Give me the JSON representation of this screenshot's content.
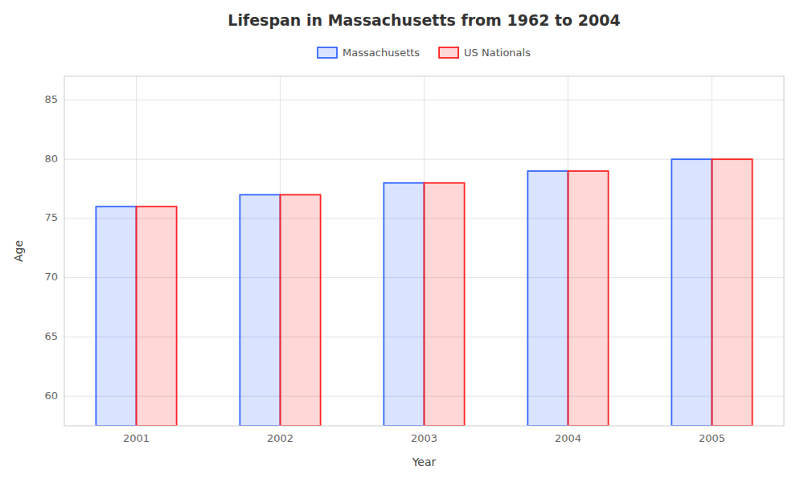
{
  "chart_data": {
    "type": "bar",
    "title": "Lifespan in Massachusetts from 1962 to 2004",
    "xlabel": "Year",
    "ylabel": "Age",
    "categories": [
      "2001",
      "2002",
      "2003",
      "2004",
      "2005"
    ],
    "series": [
      {
        "name": "Massachusetts",
        "color": "#3366ff",
        "values": [
          76,
          77,
          78,
          79,
          80
        ]
      },
      {
        "name": "US Nationals",
        "color": "#ff2222",
        "values": [
          76,
          77,
          78,
          79,
          80
        ]
      }
    ],
    "ylim": [
      57.5,
      87
    ],
    "yticks": [
      60,
      65,
      70,
      75,
      80,
      85
    ],
    "grid": true,
    "legend": "top"
  }
}
